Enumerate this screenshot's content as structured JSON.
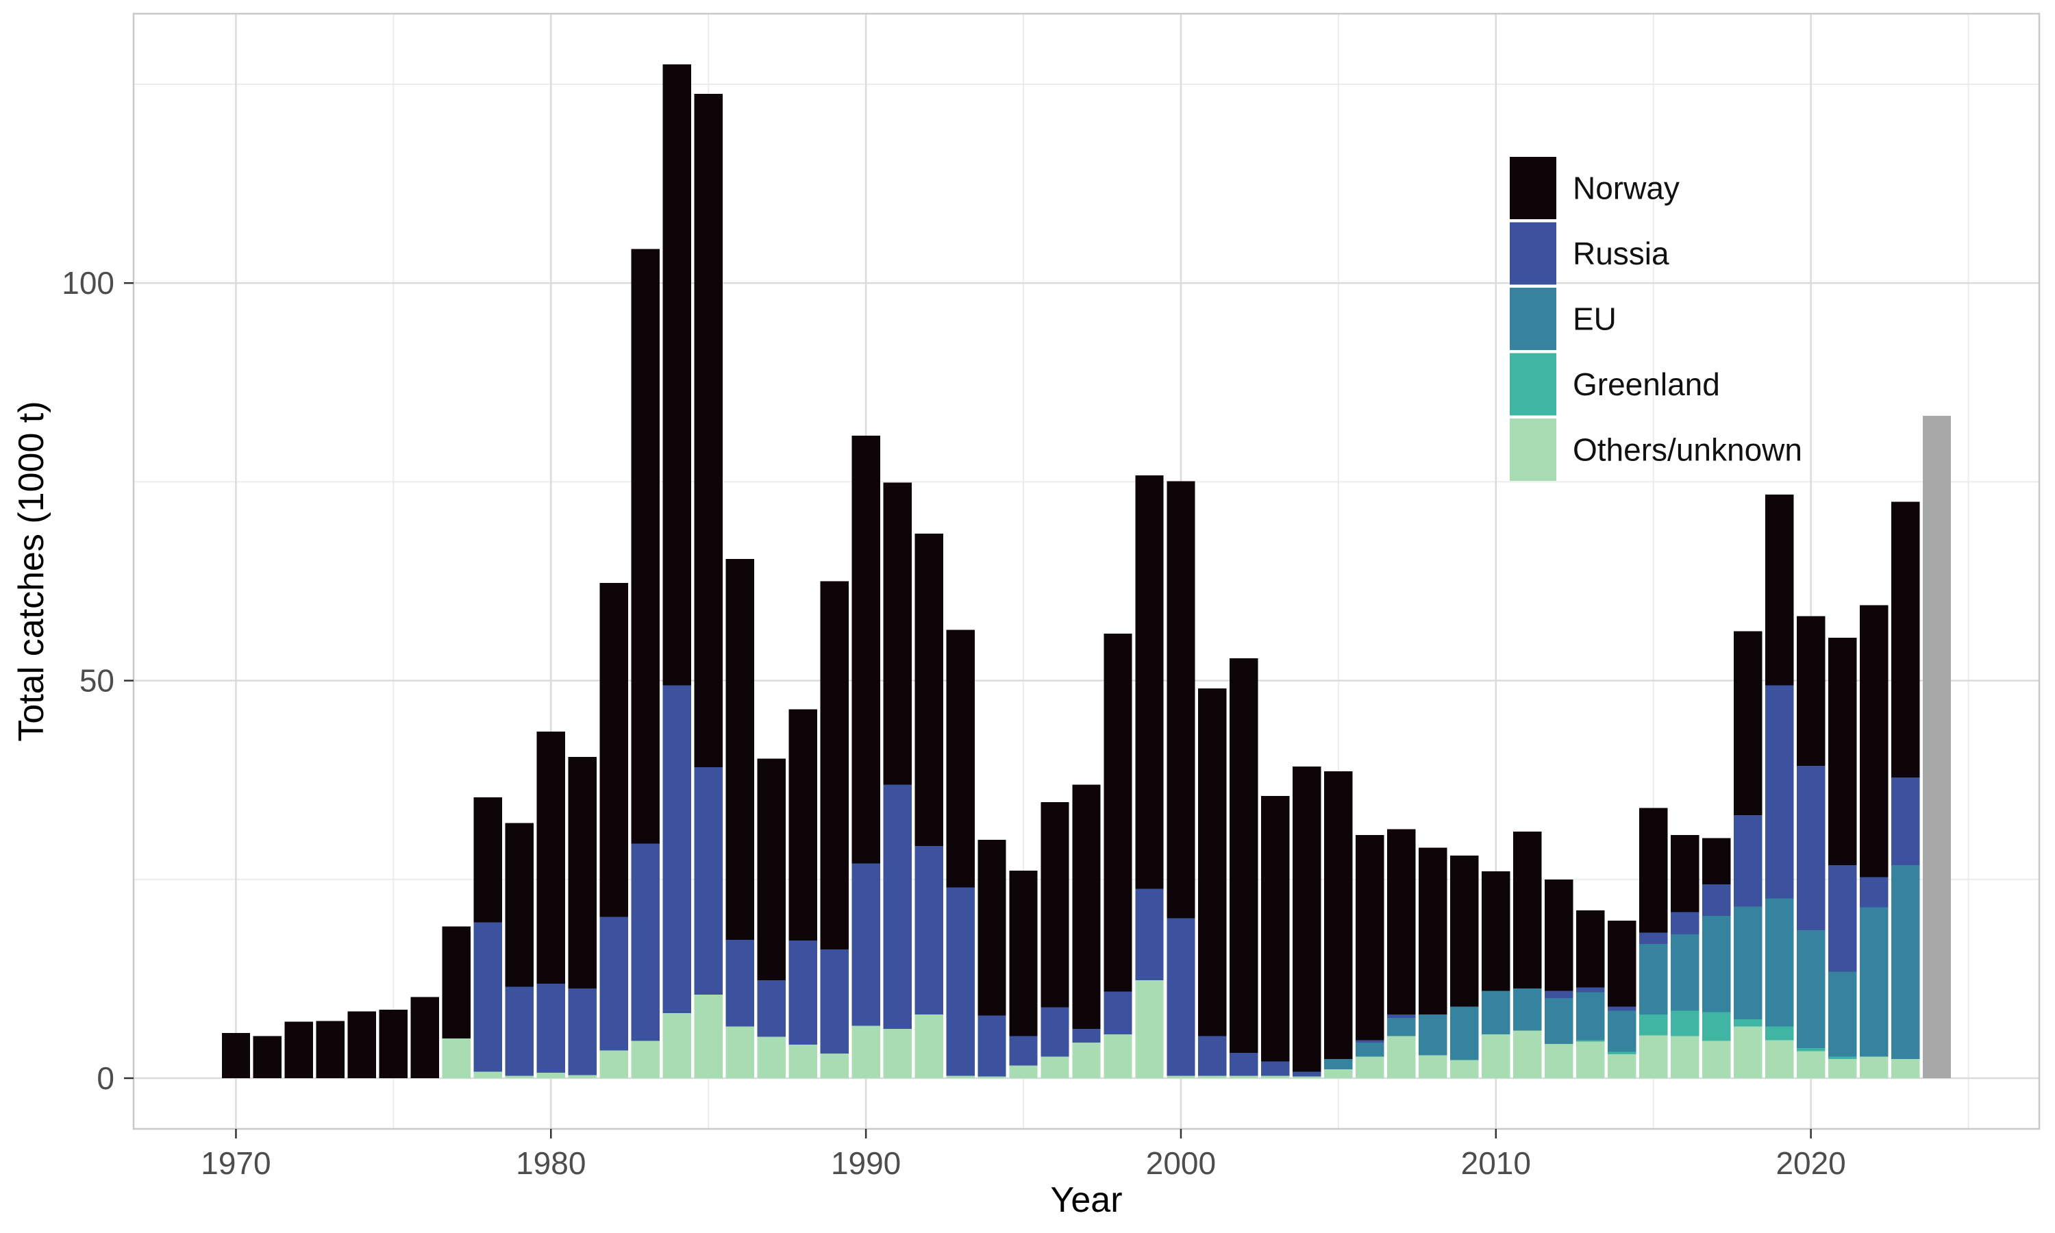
{
  "chart_data": {
    "type": "bar",
    "stacked": true,
    "title": "",
    "xlabel": "Year",
    "ylabel": "Total catches (1000 t)",
    "x_range": [
      1970,
      2024
    ],
    "ylim": [
      0,
      134
    ],
    "grid": true,
    "legend_position": "inside-top-right",
    "x_ticks": [
      1970,
      1980,
      1990,
      2000,
      2010,
      2020
    ],
    "x_minor_ticks": [
      1975,
      1985,
      1995,
      2005,
      2015,
      2025
    ],
    "y_ticks": [
      0,
      50,
      100
    ],
    "y_minor_ticks": [
      25,
      75,
      125
    ],
    "x_tick_labels": [
      "1970",
      "1980",
      "1990",
      "2000",
      "2010",
      "2020"
    ],
    "y_tick_labels": [
      "0",
      "50",
      "100"
    ],
    "years": [
      1970,
      1971,
      1972,
      1973,
      1974,
      1975,
      1976,
      1977,
      1978,
      1979,
      1980,
      1981,
      1982,
      1983,
      1984,
      1985,
      1986,
      1987,
      1988,
      1989,
      1990,
      1991,
      1992,
      1993,
      1994,
      1995,
      1996,
      1997,
      1998,
      1999,
      2000,
      2001,
      2002,
      2003,
      2004,
      2005,
      2006,
      2007,
      2008,
      2009,
      2010,
      2011,
      2012,
      2013,
      2014,
      2015,
      2016,
      2017,
      2018,
      2019,
      2020,
      2021,
      2022,
      2023,
      2024
    ],
    "series": [
      {
        "name": "Others/unknown",
        "color": "#A8DCB3",
        "in_legend": true,
        "values": [
          0,
          0,
          0,
          0,
          0,
          0,
          0,
          5.0,
          0.8,
          0.3,
          0.7,
          0.4,
          3.5,
          4.7,
          8.2,
          10.5,
          6.5,
          5.2,
          4.2,
          3.1,
          6.6,
          6.2,
          8.0,
          0.3,
          0.2,
          1.6,
          2.7,
          4.5,
          5.5,
          12.3,
          0.3,
          0.3,
          0.3,
          0.3,
          0.2,
          1.1,
          2.7,
          5.3,
          2.9,
          2.3,
          5.5,
          6.0,
          4.3,
          4.6,
          3.0,
          5.4,
          5.3,
          4.7,
          6.5,
          4.8,
          3.4,
          2.4,
          2.7,
          2.4,
          0
        ]
      },
      {
        "name": "Greenland",
        "color": "#40B5A4",
        "in_legend": true,
        "values": [
          0,
          0,
          0,
          0,
          0,
          0,
          0,
          0,
          0,
          0,
          0,
          0,
          0,
          0,
          0,
          0,
          0,
          0,
          0,
          0,
          0,
          0,
          0,
          0,
          0,
          0,
          0,
          0,
          0,
          0,
          0,
          0,
          0,
          0,
          0,
          0,
          0,
          0,
          0,
          0,
          0,
          0,
          0,
          0.2,
          0.3,
          2.6,
          3.2,
          3.6,
          0.9,
          1.7,
          0.4,
          0.3,
          0,
          0,
          0
        ]
      },
      {
        "name": "EU",
        "color": "#35839E",
        "in_legend": true,
        "values": [
          0,
          0,
          0,
          0,
          0,
          0,
          0,
          0,
          0,
          0,
          0,
          0,
          0,
          0,
          0,
          0,
          0,
          0,
          0,
          0,
          0,
          0,
          0,
          0,
          0,
          0,
          0,
          0,
          0,
          0,
          0,
          0,
          0,
          0,
          0,
          1.3,
          1.8,
          2.3,
          5.1,
          6.7,
          5.5,
          5.3,
          5.8,
          6.0,
          5.2,
          8.9,
          9.6,
          12.1,
          14.2,
          16.1,
          14.8,
          10.7,
          18.8,
          24.4,
          0
        ]
      },
      {
        "name": "Russia",
        "color": "#3C529E",
        "in_legend": true,
        "values": [
          0,
          0,
          0,
          0,
          0,
          0,
          0,
          0,
          18.8,
          11.2,
          11.2,
          10.9,
          16.8,
          24.8,
          41.2,
          28.6,
          10.9,
          7.1,
          13.1,
          13.1,
          20.4,
          30.7,
          21.2,
          23.7,
          7.7,
          3.7,
          6.2,
          1.7,
          5.4,
          11.5,
          19.8,
          5.0,
          2.9,
          1.8,
          0.6,
          0,
          0.3,
          0.4,
          0,
          0,
          0,
          0,
          0.9,
          0.6,
          0.5,
          1.4,
          2.8,
          4.0,
          11.5,
          26.8,
          20.7,
          13.4,
          3.8,
          11.0,
          0
        ]
      },
      {
        "name": "Norway",
        "color": "#0D0508",
        "in_legend": true,
        "values": [
          5.7,
          5.3,
          7.1,
          7.2,
          8.4,
          8.6,
          10.2,
          14.1,
          15.7,
          20.6,
          31.7,
          29.1,
          42.0,
          74.8,
          78.1,
          84.7,
          47.9,
          27.9,
          29.1,
          46.3,
          53.8,
          38.0,
          39.3,
          32.4,
          22.1,
          20.8,
          25.8,
          30.7,
          45.0,
          52.0,
          55.0,
          43.7,
          49.6,
          33.4,
          38.4,
          36.2,
          25.8,
          23.3,
          21.0,
          19.0,
          15.0,
          19.7,
          14.0,
          9.7,
          10.8,
          15.7,
          9.7,
          5.8,
          23.1,
          24.0,
          18.8,
          28.6,
          34.2,
          34.7,
          0
        ]
      },
      {
        "name": "",
        "id": "grey-2024",
        "color": "#A8A8A8",
        "in_legend": false,
        "values": [
          0,
          0,
          0,
          0,
          0,
          0,
          0,
          0,
          0,
          0,
          0,
          0,
          0,
          0,
          0,
          0,
          0,
          0,
          0,
          0,
          0,
          0,
          0,
          0,
          0,
          0,
          0,
          0,
          0,
          0,
          0,
          0,
          0,
          0,
          0,
          0,
          0,
          0,
          0,
          0,
          0,
          0,
          0,
          0,
          0,
          0,
          0,
          0,
          0,
          0,
          0,
          0,
          0,
          0,
          83.3
        ]
      }
    ],
    "legend_entries": [
      "Norway",
      "Russia",
      "EU",
      "Greenland",
      "Others/unknown"
    ]
  },
  "style": {
    "panel_border_color": "#C9C9C9",
    "grid_major_color": "#DBDBDB",
    "grid_minor_color": "#ECECEC",
    "tick_mark_color": "#333333",
    "tick_label_color": "#4D4D4D",
    "legend_text_color": "#111111"
  }
}
